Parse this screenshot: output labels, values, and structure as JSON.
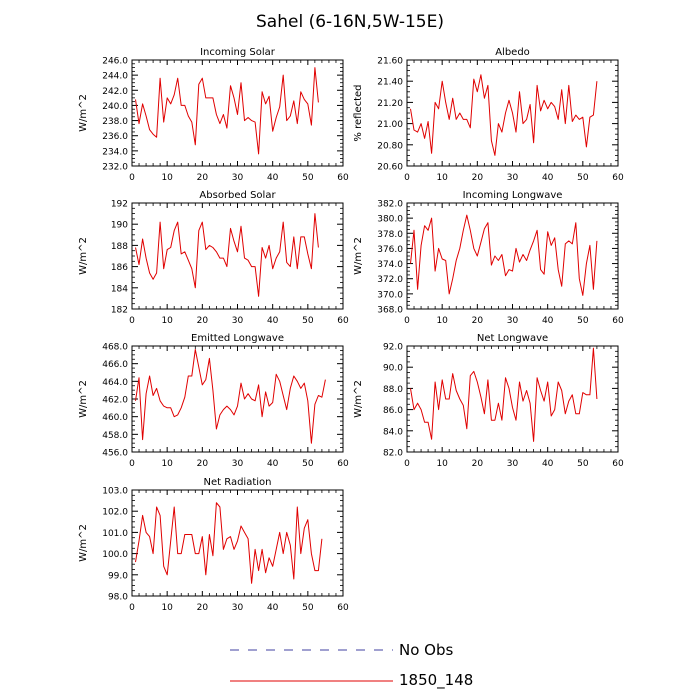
{
  "figure": {
    "title": "Sahel (6-16N,5W-15E)",
    "legend": [
      {
        "label": "No Obs",
        "color": "#4040a0",
        "dash": "dashed"
      },
      {
        "label": "1850_148",
        "color": "#e00000",
        "dash": "solid"
      }
    ]
  },
  "chart_data": [
    {
      "type": "line",
      "title": "Incoming Solar",
      "ylabel": "W/m^2",
      "xlim": [
        0,
        60
      ],
      "ylim": [
        232,
        246
      ],
      "yticks": [
        "232.0",
        "234.0",
        "236.0",
        "238.0",
        "240.0",
        "242.0",
        "244.0",
        "246.0"
      ],
      "xticks": [
        "0",
        "10",
        "20",
        "30",
        "40",
        "50",
        "60"
      ],
      "series": [
        {
          "color": "#e00000",
          "x0": 1,
          "values": [
            240.8,
            237.6,
            240.2,
            238.6,
            236.8,
            236.2,
            235.8,
            243.6,
            237.8,
            241.0,
            240.2,
            241.4,
            243.6,
            240.0,
            240.0,
            238.6,
            237.8,
            234.8,
            242.8,
            243.6,
            241.0,
            241.0,
            241.0,
            238.8,
            237.6,
            238.8,
            237.0,
            242.6,
            241.0,
            238.8,
            243.0,
            238.0,
            238.4,
            238.0,
            237.8,
            233.6,
            241.8,
            240.2,
            241.2,
            236.6,
            238.4,
            239.8,
            244.0,
            238.0,
            238.6,
            240.6,
            237.6,
            241.8,
            240.8,
            240.2,
            237.4,
            245.0,
            240.4
          ]
        }
      ]
    },
    {
      "type": "line",
      "title": "Albedo",
      "ylabel": "% reflected",
      "xlim": [
        0,
        60
      ],
      "ylim": [
        20.6,
        21.6
      ],
      "yticks": [
        "20.60",
        "20.80",
        "21.00",
        "21.20",
        "21.40",
        "21.60"
      ],
      "xticks": [
        "0",
        "10",
        "20",
        "30",
        "40",
        "50",
        "60"
      ],
      "series": [
        {
          "color": "#e00000",
          "x0": 1,
          "values": [
            21.14,
            20.94,
            20.92,
            21.0,
            20.86,
            21.02,
            20.72,
            21.2,
            21.14,
            21.4,
            21.2,
            21.04,
            21.24,
            21.04,
            21.1,
            21.04,
            21.04,
            20.96,
            21.42,
            21.3,
            21.46,
            21.24,
            21.36,
            20.84,
            20.7,
            21.0,
            20.92,
            21.1,
            21.22,
            21.1,
            20.92,
            21.3,
            21.0,
            21.04,
            21.18,
            20.82,
            21.36,
            21.12,
            21.22,
            21.14,
            21.2,
            21.16,
            21.04,
            21.32,
            21.0,
            21.36,
            21.02,
            21.08,
            21.04,
            21.06,
            20.78,
            21.06,
            21.08,
            21.4
          ]
        }
      ]
    },
    {
      "type": "line",
      "title": "Absorbed Solar",
      "ylabel": "W/m^2",
      "xlim": [
        0,
        60
      ],
      "ylim": [
        182,
        192
      ],
      "yticks": [
        "182",
        "184",
        "186",
        "188",
        "190",
        "192"
      ],
      "xticks": [
        "0",
        "10",
        "20",
        "30",
        "40",
        "50",
        "60"
      ],
      "series": [
        {
          "color": "#e00000",
          "x0": 1,
          "values": [
            187.8,
            186.2,
            188.6,
            186.8,
            185.4,
            184.8,
            185.4,
            190.2,
            185.8,
            187.6,
            187.8,
            189.4,
            190.2,
            187.2,
            187.4,
            186.6,
            185.8,
            184.0,
            189.4,
            190.2,
            187.6,
            188.0,
            187.8,
            187.4,
            186.8,
            186.8,
            186.0,
            189.6,
            188.4,
            187.4,
            189.8,
            186.8,
            186.6,
            186.0,
            186.0,
            183.2,
            187.8,
            186.8,
            188.0,
            185.8,
            186.8,
            187.4,
            190.2,
            186.4,
            186.0,
            188.8,
            185.8,
            188.8,
            188.8,
            187.2,
            185.8,
            191.0,
            187.8
          ]
        }
      ]
    },
    {
      "type": "line",
      "title": "Incoming Longwave",
      "ylabel": "W/m^2",
      "xlim": [
        0,
        60
      ],
      "ylim": [
        368,
        382
      ],
      "yticks": [
        "368.0",
        "370.0",
        "372.0",
        "374.0",
        "376.0",
        "378.0",
        "380.0",
        "382.0"
      ],
      "xticks": [
        "0",
        "10",
        "20",
        "30",
        "40",
        "50",
        "60"
      ],
      "series": [
        {
          "color": "#e00000",
          "x0": 1,
          "values": [
            374.0,
            378.4,
            370.6,
            376.4,
            379.0,
            378.4,
            380.0,
            373.0,
            376.0,
            374.6,
            374.4,
            370.0,
            372.0,
            374.4,
            376.0,
            378.4,
            380.4,
            378.4,
            376.0,
            375.0,
            376.8,
            378.6,
            379.4,
            373.8,
            375.0,
            374.4,
            375.2,
            372.4,
            373.2,
            373.0,
            376.0,
            374.2,
            375.2,
            374.4,
            375.8,
            377.0,
            378.4,
            373.2,
            372.6,
            378.2,
            376.4,
            377.4,
            373.2,
            371.0,
            376.6,
            377.0,
            376.6,
            379.4,
            372.0,
            369.8,
            374.0,
            376.4,
            370.6,
            377.0
          ]
        }
      ]
    },
    {
      "type": "line",
      "title": "Emitted Longwave",
      "ylabel": "W/m^2",
      "xlim": [
        0,
        60
      ],
      "ylim": [
        456,
        468
      ],
      "yticks": [
        "456.0",
        "458.0",
        "460.0",
        "462.0",
        "464.0",
        "466.0",
        "468.0"
      ],
      "xticks": [
        "0",
        "10",
        "20",
        "30",
        "40",
        "50",
        "60"
      ],
      "series": [
        {
          "color": "#e00000",
          "x0": 1,
          "values": [
            461.8,
            464.4,
            457.4,
            462.6,
            464.6,
            462.4,
            463.2,
            461.8,
            461.2,
            461.0,
            461.0,
            460.0,
            460.2,
            461.0,
            462.2,
            464.6,
            464.6,
            467.6,
            465.6,
            463.6,
            464.2,
            466.6,
            463.0,
            458.6,
            460.2,
            460.8,
            461.2,
            460.8,
            460.2,
            461.2,
            463.8,
            462.0,
            462.6,
            462.0,
            461.8,
            463.6,
            460.0,
            462.8,
            461.2,
            461.6,
            464.8,
            464.0,
            462.4,
            460.8,
            463.2,
            464.6,
            464.0,
            463.2,
            463.8,
            461.8,
            457.0,
            461.4,
            462.4,
            462.2,
            464.2
          ]
        }
      ]
    },
    {
      "type": "line",
      "title": "Net Longwave",
      "ylabel": "W/m^2",
      "xlim": [
        0,
        60
      ],
      "ylim": [
        82,
        92
      ],
      "yticks": [
        "82.0",
        "84.0",
        "86.0",
        "88.0",
        "90.0",
        "92.0"
      ],
      "xticks": [
        "0",
        "10",
        "20",
        "30",
        "40",
        "50",
        "60"
      ],
      "series": [
        {
          "color": "#e00000",
          "x0": 1,
          "values": [
            88.0,
            86.0,
            86.6,
            86.0,
            84.8,
            84.8,
            83.2,
            88.6,
            86.0,
            88.8,
            87.0,
            87.0,
            89.4,
            87.8,
            87.0,
            86.4,
            84.2,
            89.2,
            89.6,
            88.6,
            87.2,
            85.6,
            88.8,
            85.0,
            85.0,
            86.6,
            85.0,
            89.0,
            88.0,
            86.2,
            85.0,
            88.6,
            86.8,
            87.8,
            86.6,
            83.0,
            89.0,
            87.8,
            86.8,
            88.6,
            85.4,
            86.0,
            88.6,
            87.8,
            85.6,
            86.8,
            87.4,
            85.6,
            85.6,
            87.6,
            87.4,
            87.4,
            91.8,
            87.0
          ]
        }
      ]
    },
    {
      "type": "line",
      "title": "Net Radiation",
      "ylabel": "W/m^2",
      "xlim": [
        0,
        60
      ],
      "ylim": [
        98,
        103
      ],
      "yticks": [
        "98.0",
        "99.0",
        "100.0",
        "101.0",
        "102.0",
        "103.0"
      ],
      "xticks": [
        "0",
        "10",
        "20",
        "30",
        "40",
        "50",
        "60"
      ],
      "series": [
        {
          "color": "#e00000",
          "x0": 1,
          "values": [
            99.6,
            100.6,
            101.8,
            101.0,
            100.8,
            100.0,
            102.2,
            101.8,
            99.4,
            99.0,
            100.6,
            102.2,
            100.0,
            100.0,
            100.9,
            100.9,
            100.9,
            100.0,
            100.0,
            100.8,
            99.0,
            100.9,
            99.9,
            102.4,
            102.2,
            100.2,
            100.7,
            100.8,
            100.2,
            100.6,
            101.3,
            101.0,
            100.7,
            98.6,
            100.2,
            99.2,
            100.2,
            99.1,
            99.8,
            99.4,
            100.2,
            101.0,
            100.0,
            101.0,
            100.4,
            98.8,
            102.2,
            100.0,
            101.2,
            101.6,
            100.0,
            99.2,
            99.2,
            100.7
          ]
        }
      ]
    }
  ]
}
